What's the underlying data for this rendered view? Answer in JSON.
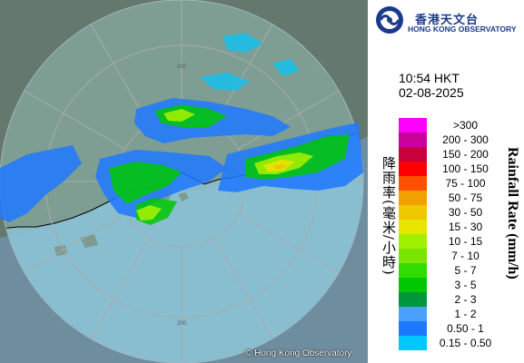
{
  "logo": {
    "name_zh": "香港天文台",
    "name_en": "HONG KONG OBSERVATORY"
  },
  "timestamp": {
    "time": "10:54 HKT",
    "date": "02-08-2025"
  },
  "map": {
    "copyright": "© Hong Kong Observatory",
    "range_ring_labels": [
      "200",
      "200"
    ],
    "colors": {
      "land": "#64786e",
      "sea": "#6e8ea0",
      "radar_coverage": "#8ec5d8",
      "ring_line": "#aaaaaa"
    }
  },
  "legend": {
    "title_zh": "降雨率(毫米/小時)",
    "title_en": "Rainfall Rate (mm/h)",
    "levels": [
      {
        "label": ">300",
        "color": "#ff00ff"
      },
      {
        "label": "200 - 300",
        "color": "#c8009c"
      },
      {
        "label": "150 - 200",
        "color": "#c8003c"
      },
      {
        "label": "100 - 150",
        "color": "#ff0000"
      },
      {
        "label": "75 - 100",
        "color": "#ff5000"
      },
      {
        "label": "50 - 75",
        "color": "#f0a000"
      },
      {
        "label": "30 - 50",
        "color": "#f0c800"
      },
      {
        "label": "15 - 30",
        "color": "#e6e600"
      },
      {
        "label": "10 - 15",
        "color": "#a0f000"
      },
      {
        "label": "7 - 10",
        "color": "#78e600"
      },
      {
        "label": "5 - 7",
        "color": "#32dc00"
      },
      {
        "label": "3 - 5",
        "color": "#00c800"
      },
      {
        "label": "2 - 3",
        "color": "#00963c"
      },
      {
        "label": "1 - 2",
        "color": "#4ba0ff"
      },
      {
        "label": "0.50 - 1",
        "color": "#1e78ff"
      },
      {
        "label": "0.15 - 0.50",
        "color": "#00c8ff"
      }
    ]
  }
}
